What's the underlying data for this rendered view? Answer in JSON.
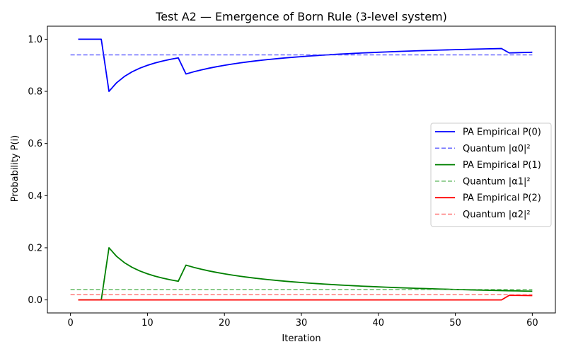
{
  "chart_data": {
    "type": "line",
    "title": "Test A2 — Emergence of Born Rule (3-level system)",
    "xlabel": "Iteration",
    "ylabel": "Probability P(i)",
    "xlim": [
      -3,
      63
    ],
    "ylim": [
      -0.05,
      1.05
    ],
    "xticks": [
      0,
      10,
      20,
      30,
      40,
      50,
      60
    ],
    "yticks": [
      0.0,
      0.2,
      0.4,
      0.6,
      0.8,
      1.0
    ],
    "xtick_labels": [
      "0",
      "10",
      "20",
      "30",
      "40",
      "50",
      "60"
    ],
    "ytick_labels": [
      "0.0",
      "0.2",
      "0.4",
      "0.6",
      "0.8",
      "1.0"
    ],
    "grid": false,
    "legend_position": "center-right",
    "series": [
      {
        "name": "PA Empirical P(0)",
        "color": "#0000ff",
        "style": "solid",
        "x": [
          1,
          2,
          3,
          4,
          5,
          6,
          7,
          8,
          9,
          10,
          11,
          12,
          13,
          14,
          15,
          16,
          17,
          18,
          19,
          20,
          21,
          22,
          23,
          24,
          25,
          26,
          27,
          28,
          29,
          30,
          31,
          32,
          33,
          34,
          35,
          36,
          37,
          38,
          39,
          40,
          41,
          42,
          43,
          44,
          45,
          46,
          47,
          48,
          49,
          50,
          51,
          52,
          53,
          54,
          55,
          56,
          57,
          58,
          59,
          60
        ],
        "values": [
          1.0,
          1.0,
          1.0,
          1.0,
          0.8,
          0.8333,
          0.8571,
          0.875,
          0.8889,
          0.9,
          0.9091,
          0.9167,
          0.9231,
          0.9286,
          0.8667,
          0.875,
          0.8824,
          0.8889,
          0.8947,
          0.9,
          0.9048,
          0.9091,
          0.913,
          0.9167,
          0.92,
          0.9231,
          0.9259,
          0.9286,
          0.931,
          0.9333,
          0.9355,
          0.9375,
          0.9394,
          0.9412,
          0.9429,
          0.9444,
          0.9459,
          0.9474,
          0.9487,
          0.95,
          0.9512,
          0.9524,
          0.9535,
          0.9545,
          0.9556,
          0.9565,
          0.9574,
          0.9583,
          0.9592,
          0.96,
          0.9608,
          0.9615,
          0.9623,
          0.963,
          0.9636,
          0.9643,
          0.9474,
          0.9483,
          0.9492,
          0.95
        ]
      },
      {
        "name": "Quantum |α0|²",
        "color": "#4444ff",
        "style": "dashed",
        "x": [
          0,
          60
        ],
        "values": [
          0.94,
          0.94
        ]
      },
      {
        "name": "PA Empirical P(1)",
        "color": "#008000",
        "style": "solid",
        "x": [
          1,
          2,
          3,
          4,
          5,
          6,
          7,
          8,
          9,
          10,
          11,
          12,
          13,
          14,
          15,
          16,
          17,
          18,
          19,
          20,
          21,
          22,
          23,
          24,
          25,
          26,
          27,
          28,
          29,
          30,
          31,
          32,
          33,
          34,
          35,
          36,
          37,
          38,
          39,
          40,
          41,
          42,
          43,
          44,
          45,
          46,
          47,
          48,
          49,
          50,
          51,
          52,
          53,
          54,
          55,
          56,
          57,
          58,
          59,
          60
        ],
        "values": [
          0.0,
          0.0,
          0.0,
          0.0,
          0.2,
          0.1667,
          0.1429,
          0.125,
          0.1111,
          0.1,
          0.0909,
          0.0833,
          0.0769,
          0.0714,
          0.1333,
          0.125,
          0.1176,
          0.1111,
          0.1053,
          0.1,
          0.0952,
          0.0909,
          0.087,
          0.0833,
          0.08,
          0.0769,
          0.0741,
          0.0714,
          0.069,
          0.0667,
          0.0645,
          0.0625,
          0.0606,
          0.0588,
          0.0571,
          0.0556,
          0.0541,
          0.0526,
          0.0513,
          0.05,
          0.0488,
          0.0476,
          0.0465,
          0.0455,
          0.0444,
          0.0435,
          0.0426,
          0.0417,
          0.0408,
          0.04,
          0.0392,
          0.0385,
          0.0377,
          0.037,
          0.0364,
          0.0357,
          0.0351,
          0.0345,
          0.0339,
          0.0333
        ]
      },
      {
        "name": "Quantum |α1|²",
        "color": "#44aa44",
        "style": "dashed",
        "x": [
          0,
          60
        ],
        "values": [
          0.04,
          0.04
        ]
      },
      {
        "name": "PA Empirical P(2)",
        "color": "#ff0000",
        "style": "solid",
        "x": [
          1,
          56,
          57,
          58,
          59,
          60
        ],
        "values": [
          0.0,
          0.0,
          0.0175,
          0.0172,
          0.0169,
          0.0167
        ]
      },
      {
        "name": "Quantum |α2|²",
        "color": "#ff5555",
        "style": "dashed",
        "x": [
          0,
          60
        ],
        "values": [
          0.02,
          0.02
        ]
      }
    ]
  }
}
